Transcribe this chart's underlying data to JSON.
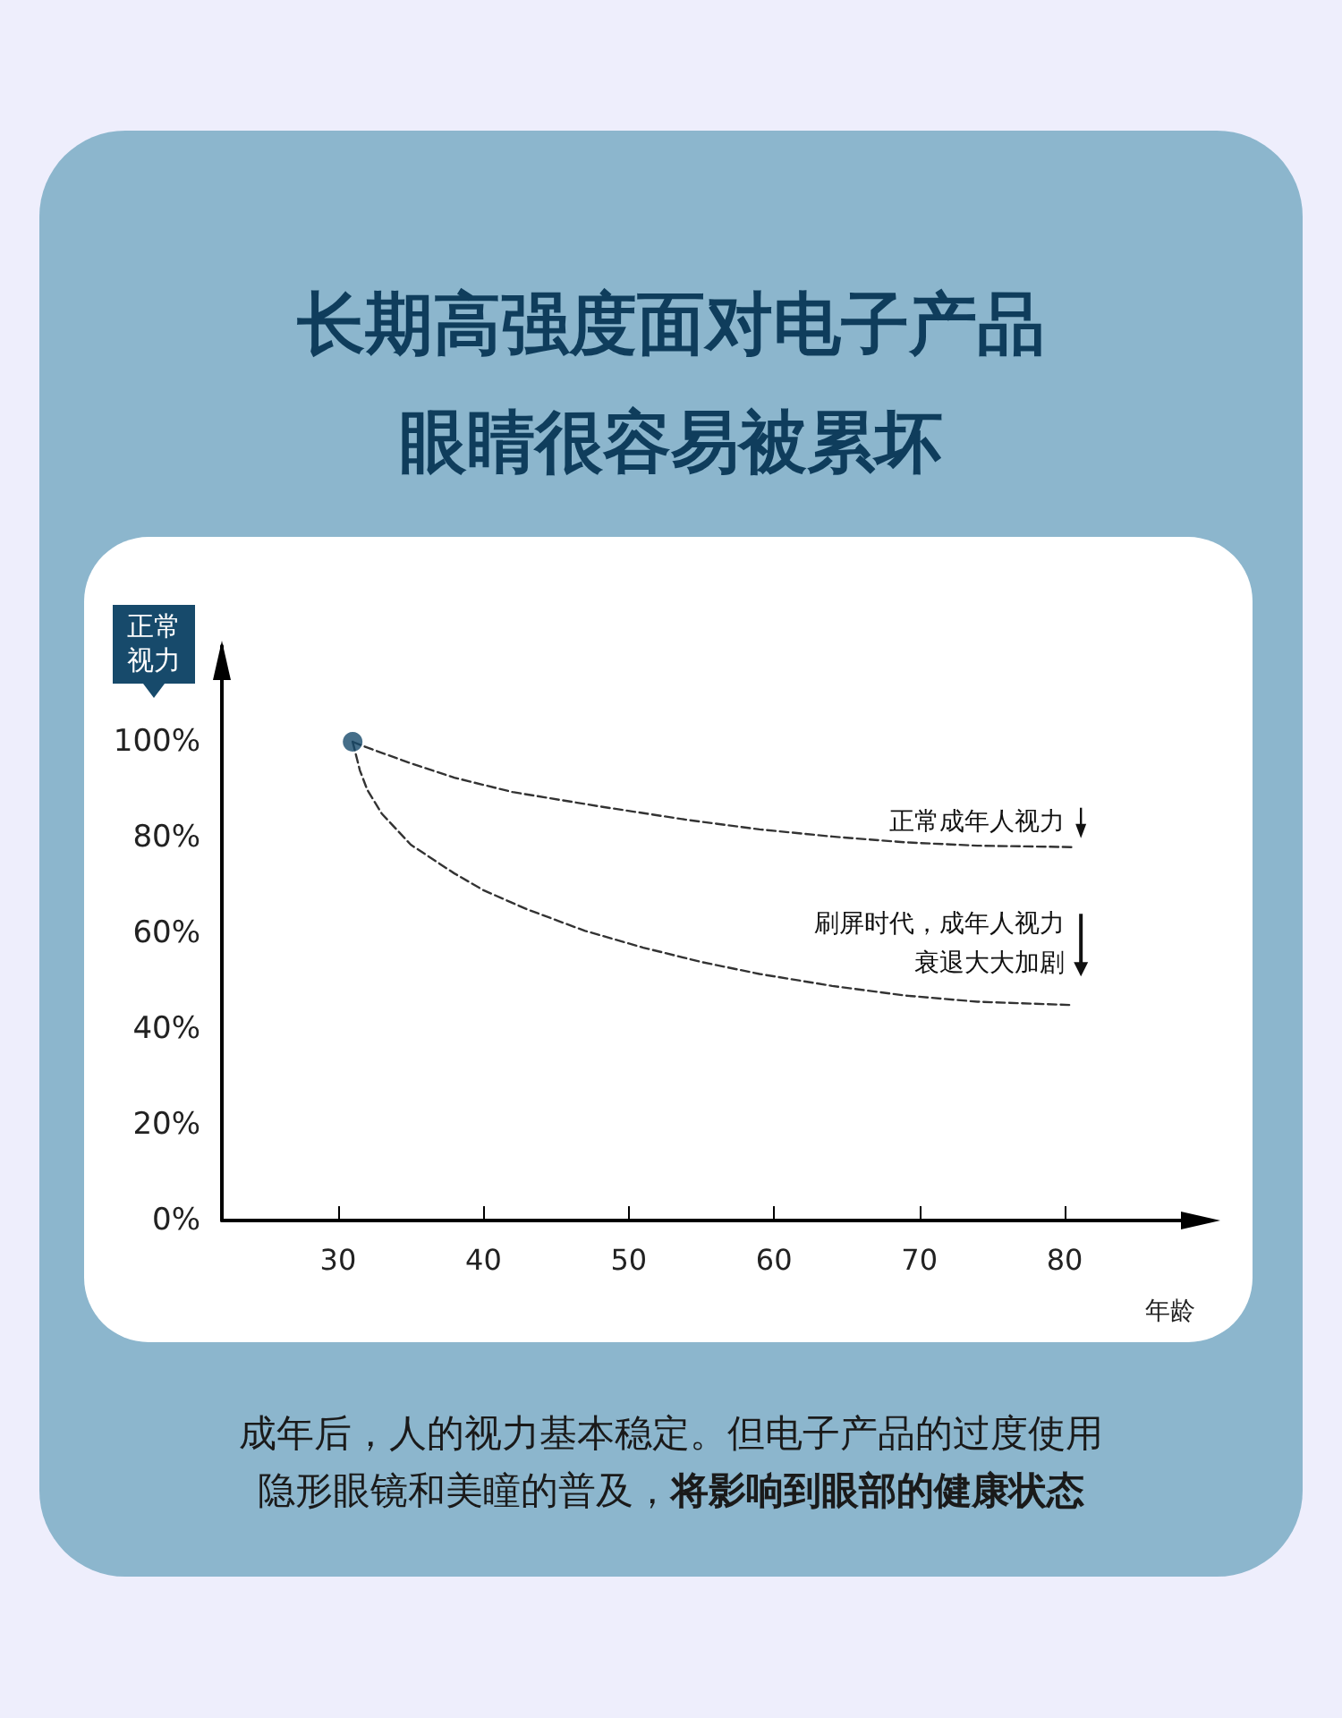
{
  "chart_data": {
    "type": "line",
    "title": "长期高强度面对电子产品眼睛很容易被累坏",
    "xlabel": "年龄",
    "ylabel": "正常视力",
    "xlim": [
      22,
      88
    ],
    "xticks": [
      30,
      40,
      50,
      60,
      70,
      80
    ],
    "ylim": [
      0,
      120
    ],
    "yticks": [
      {
        "value": 0,
        "label": "0%"
      },
      {
        "value": 20,
        "label": "20%"
      },
      {
        "value": 40,
        "label": "40%"
      },
      {
        "value": 60,
        "label": "60%"
      },
      {
        "value": 80,
        "label": "80%"
      },
      {
        "value": 100,
        "label": "100%"
      }
    ],
    "line_style": "dashed",
    "marker": "none",
    "grid": false,
    "series": [
      {
        "color": "#333333",
        "x": [
          31,
          32,
          33,
          35,
          38,
          42,
          48,
          54,
          59,
          64,
          69,
          74,
          80.5
        ],
        "values": [
          100,
          98.8,
          97.7,
          95.5,
          92.5,
          89.5,
          86.5,
          83.7,
          81.7,
          80.2,
          79,
          78.3,
          78
        ]
      },
      {
        "color": "#333333",
        "x": [
          31,
          31.5,
          32,
          33,
          35,
          38,
          40,
          43,
          47,
          51,
          55,
          59,
          64,
          69,
          74,
          80.5
        ],
        "values": [
          100,
          94,
          90,
          85,
          78.5,
          72.5,
          69,
          65,
          60.5,
          57,
          54,
          51.5,
          49,
          47,
          45.7,
          45
        ]
      },
      {
        "type": "scatter",
        "marker": "circle",
        "color": "#174a6b",
        "x": [
          31
        ],
        "values": [
          100
        ]
      }
    ],
    "annotations": [
      "正常成年人视力",
      "刷屏时代，成年人视力衰退大大加剧",
      "成年后，人的视力基本稳定。但电子产品的过度使用隐形眼镜和美瞳的普及，",
      "将影响到眼部的健康状态"
    ]
  }
}
